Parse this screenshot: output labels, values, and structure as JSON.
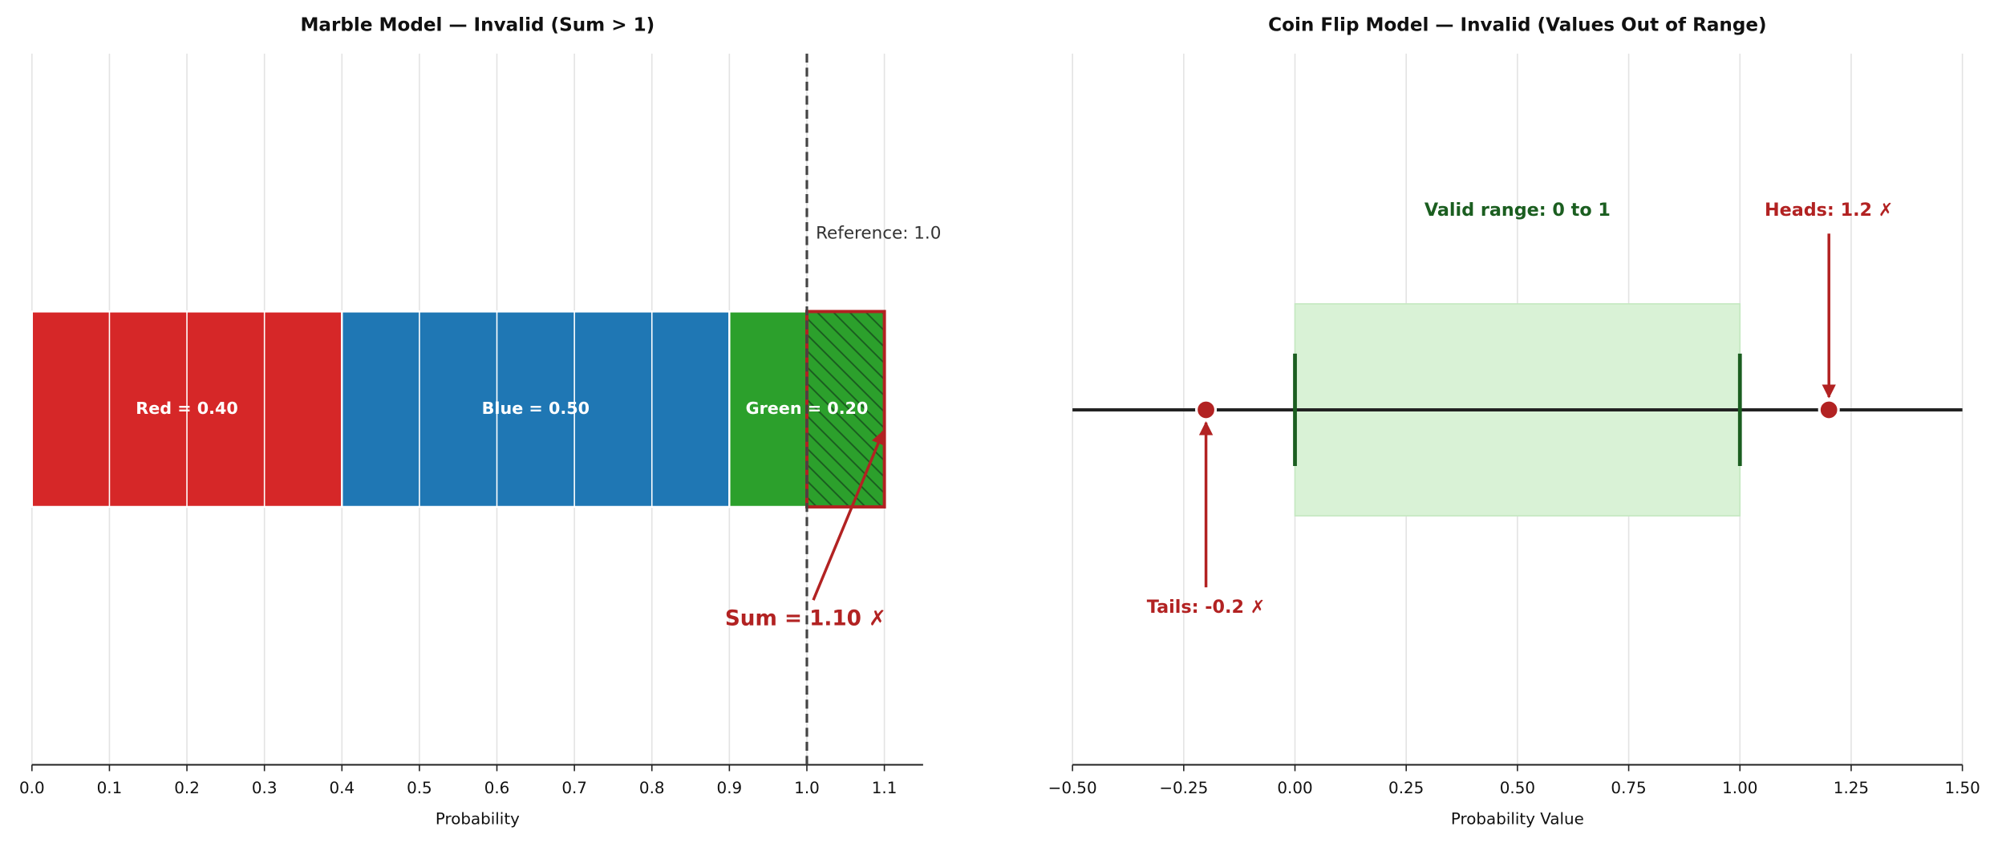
{
  "chart_data": [
    {
      "type": "stacked_bar",
      "title": "Marble Model — Invalid (Sum > 1)",
      "x_label": "Probability",
      "series": [
        {
          "color": "#d62728",
          "values": [
            0.4
          ],
          "value_labels": [
            "Red = 0.40"
          ]
        },
        {
          "color": "#1f77b4",
          "values": [
            0.5
          ],
          "value_labels": [
            "Blue = 0.50"
          ]
        },
        {
          "color": "#2ca02c",
          "values": [
            0.2
          ],
          "value_labels": [
            "Green = 0.20"
          ]
        }
      ],
      "reference": {
        "value": 1.0,
        "label": "Reference: 1.0"
      },
      "sum": {
        "value": 1.1,
        "label": "Sum = 1.10 ✗",
        "color": "#b22222"
      },
      "xlim": [
        0,
        1.15
      ],
      "xticks": [
        {
          "value": 0,
          "label": "0.0"
        },
        0.1,
        0.2,
        0.3,
        0.4,
        0.5,
        0.6,
        0.7,
        0.8,
        0.9,
        {
          "value": 1,
          "label": "1.0"
        },
        1.1
      ],
      "grid": true
    },
    {
      "type": "number_line",
      "title": "Coin Flip Model — Invalid (Values Out of Range)",
      "x_label": "Probability Value",
      "valid_range": {
        "range": [
          0,
          1
        ],
        "label": "Valid range: 0 to 1",
        "color": "#1b5e20",
        "fill": "#d9f2d6"
      },
      "points": [
        {
          "value": -0.2,
          "label": "Tails: -0.2 ✗"
        },
        {
          "value": 1.2,
          "label": "Heads: 1.2 ✗"
        }
      ],
      "point_color": "#b22222",
      "xlim": [
        -0.5,
        1.5
      ],
      "xticks": [
        {
          "value": -0.5,
          "label": "−0.50"
        },
        {
          "value": -0.25,
          "label": "−0.25"
        },
        {
          "value": 0,
          "label": "0.00"
        },
        0.25,
        {
          "value": 0.5,
          "label": "0.50"
        },
        0.75,
        {
          "value": 1,
          "label": "1.00"
        },
        1.25,
        {
          "value": 1.5,
          "label": "1.50"
        }
      ],
      "grid": true
    }
  ]
}
